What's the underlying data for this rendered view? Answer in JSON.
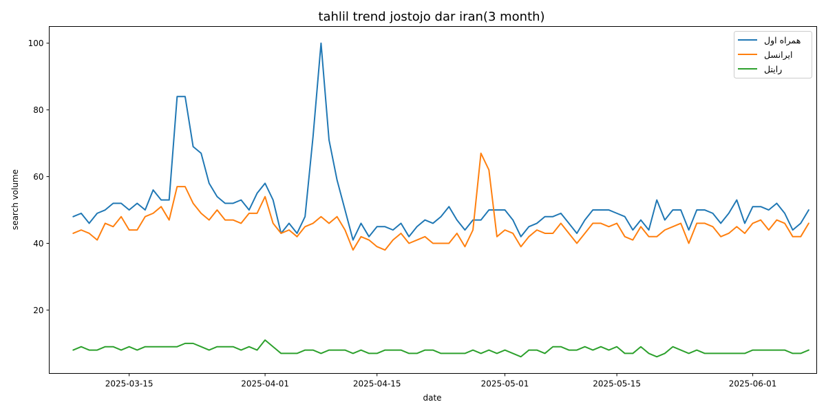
{
  "chart_data": {
    "type": "line",
    "title": "tahlil trend jostojo dar iran(3 month)",
    "xlabel": "date",
    "ylabel": "search volume",
    "x_start": "2025-03-08",
    "x_end": "2025-06-06",
    "xlim": [
      "2025-03-05",
      "2025-06-09"
    ],
    "ylim": [
      1,
      105
    ],
    "x_ticks": [
      "2025-03-15",
      "2025-04-01",
      "2025-04-15",
      "2025-05-01",
      "2025-05-15",
      "2025-06-01"
    ],
    "y_ticks": [
      20,
      40,
      60,
      80,
      100
    ],
    "grid": false,
    "legend_position": "top-right",
    "series": [
      {
        "name": "همراه اول",
        "color": "#1f77b4",
        "values": [
          48,
          49,
          46,
          49,
          50,
          52,
          52,
          50,
          52,
          50,
          56,
          53,
          53,
          84,
          84,
          69,
          67,
          58,
          54,
          52,
          52,
          53,
          50,
          55,
          58,
          53,
          43,
          46,
          43,
          48,
          72,
          100,
          71,
          59,
          50,
          41,
          46,
          42,
          45,
          45,
          44,
          46,
          42,
          45,
          47,
          46,
          48,
          51,
          47,
          44,
          47,
          47,
          50,
          50,
          50,
          47,
          42,
          45,
          46,
          48,
          48,
          49,
          46,
          43,
          47,
          50,
          50,
          50,
          49,
          48,
          44,
          47,
          44,
          53,
          47,
          50,
          50,
          44,
          50,
          50,
          49,
          46,
          49,
          53,
          46,
          51,
          51,
          50,
          52,
          49,
          44,
          46,
          50
        ]
      },
      {
        "name": "ایرانسل",
        "color": "#ff7f0e",
        "values": [
          43,
          44,
          43,
          41,
          46,
          45,
          48,
          44,
          44,
          48,
          49,
          51,
          47,
          57,
          57,
          52,
          49,
          47,
          50,
          47,
          47,
          46,
          49,
          49,
          54,
          46,
          43,
          44,
          42,
          45,
          46,
          48,
          46,
          48,
          44,
          38,
          42,
          41,
          39,
          38,
          41,
          43,
          40,
          41,
          42,
          40,
          40,
          40,
          43,
          39,
          44,
          67,
          62,
          42,
          44,
          43,
          39,
          42,
          44,
          43,
          43,
          46,
          43,
          40,
          43,
          46,
          46,
          45,
          46,
          42,
          41,
          45,
          42,
          42,
          44,
          45,
          46,
          40,
          46,
          46,
          45,
          42,
          43,
          45,
          43,
          46,
          47,
          44,
          47,
          46,
          42,
          42,
          46
        ]
      },
      {
        "name": "رایتل",
        "color": "#2ca02c",
        "values": [
          8,
          9,
          8,
          8,
          9,
          9,
          8,
          9,
          8,
          9,
          9,
          9,
          9,
          9,
          10,
          10,
          9,
          8,
          9,
          9,
          9,
          8,
          9,
          8,
          11,
          9,
          7,
          7,
          7,
          8,
          8,
          7,
          8,
          8,
          8,
          7,
          8,
          7,
          7,
          8,
          8,
          8,
          7,
          7,
          8,
          8,
          7,
          7,
          7,
          7,
          8,
          7,
          8,
          7,
          8,
          7,
          6,
          8,
          8,
          7,
          9,
          9,
          8,
          8,
          9,
          8,
          9,
          8,
          9,
          7,
          7,
          9,
          7,
          6,
          7,
          9,
          8,
          7,
          8,
          7,
          7,
          7,
          7,
          7,
          7,
          8,
          8,
          8,
          8,
          8,
          7,
          7,
          8
        ]
      }
    ]
  }
}
